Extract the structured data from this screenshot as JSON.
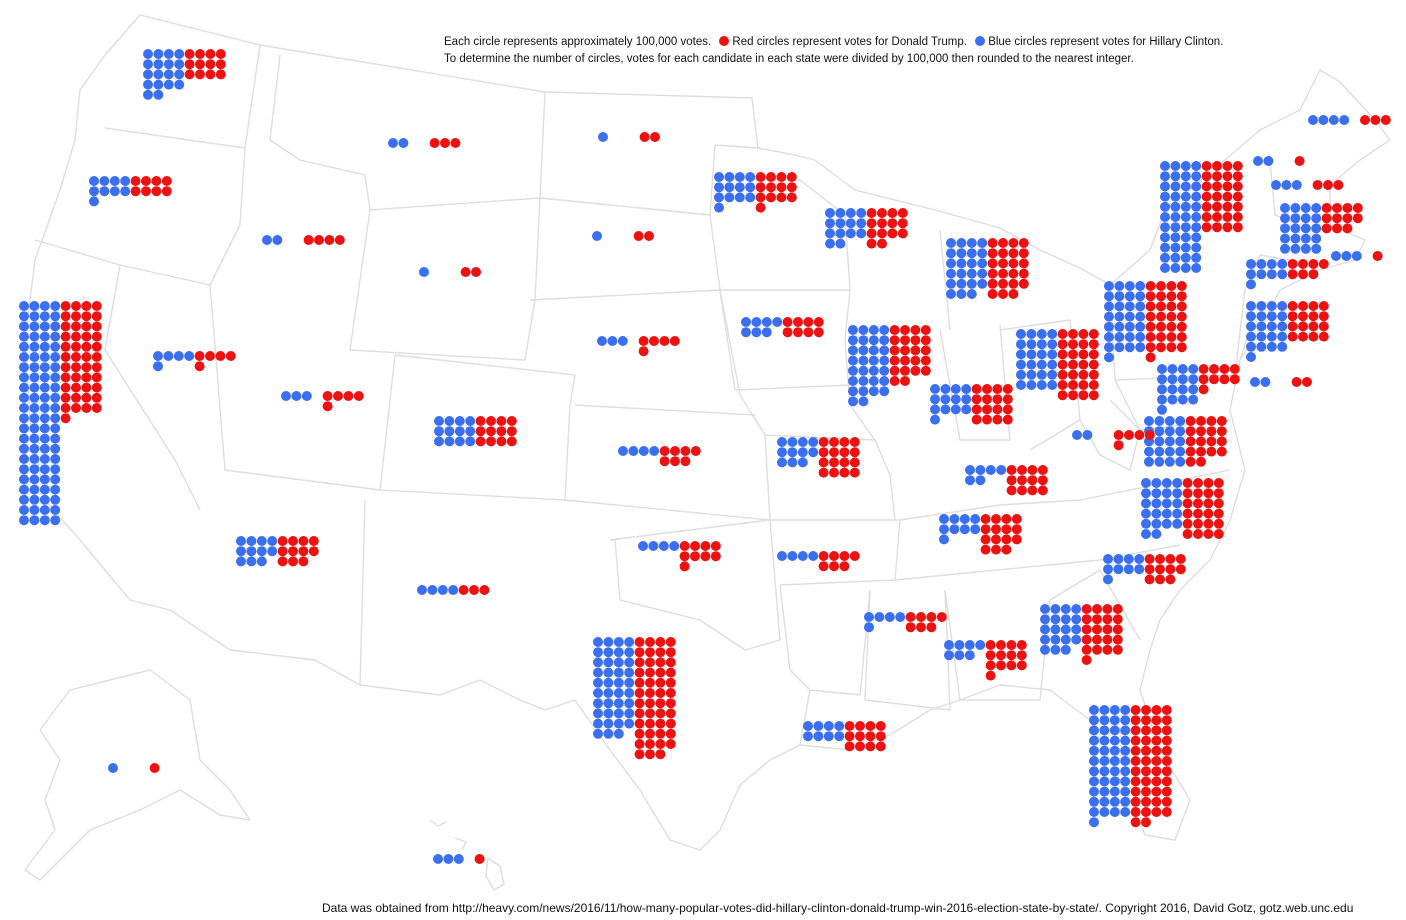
{
  "legend": {
    "line1_text": "Each circle represents approximately 100,000 votes.",
    "red_text": "Red circles represent votes for Donald Trump.",
    "blue_text": "Blue circles represent votes for Hillary Clinton.",
    "line2_text": "To determine the number of circles, votes for each candidate in each state were divided by 100,000 then rounded to the nearest integer."
  },
  "colors": {
    "trump": "#ee1111",
    "clinton": "#3a6ff0",
    "borders": "#dddddd",
    "background": "#ffffff"
  },
  "map_data": {
    "unit_votes": 100000,
    "states": [
      {
        "state": "WA",
        "clinton": 18,
        "trump": 12
      },
      {
        "state": "OR",
        "clinton": 9,
        "trump": 8
      },
      {
        "state": "CA",
        "clinton": 88,
        "trump": 45
      },
      {
        "state": "NV",
        "clinton": 5,
        "trump": 5
      },
      {
        "state": "ID",
        "clinton": 2,
        "trump": 4
      },
      {
        "state": "MT",
        "clinton": 2,
        "trump": 3
      },
      {
        "state": "WY",
        "clinton": 1,
        "trump": 2
      },
      {
        "state": "UT",
        "clinton": 3,
        "trump": 5
      },
      {
        "state": "AZ",
        "clinton": 11,
        "trump": 11
      },
      {
        "state": "CO",
        "clinton": 12,
        "trump": 12
      },
      {
        "state": "NM",
        "clinton": 4,
        "trump": 3
      },
      {
        "state": "ND",
        "clinton": 1,
        "trump": 2
      },
      {
        "state": "SD",
        "clinton": 1,
        "trump": 2
      },
      {
        "state": "NE",
        "clinton": 3,
        "trump": 5
      },
      {
        "state": "KS",
        "clinton": 4,
        "trump": 7
      },
      {
        "state": "OK",
        "clinton": 4,
        "trump": 9
      },
      {
        "state": "TX",
        "clinton": 39,
        "trump": 47
      },
      {
        "state": "MN",
        "clinton": 13,
        "trump": 13
      },
      {
        "state": "IA",
        "clinton": 7,
        "trump": 8
      },
      {
        "state": "MO",
        "clinton": 11,
        "trump": 16
      },
      {
        "state": "AR",
        "clinton": 4,
        "trump": 7
      },
      {
        "state": "LA",
        "clinton": 8,
        "trump": 12
      },
      {
        "state": "WI",
        "clinton": 14,
        "trump": 14
      },
      {
        "state": "IL",
        "clinton": 30,
        "trump": 22
      },
      {
        "state": "MI",
        "clinton": 23,
        "trump": 23
      },
      {
        "state": "IN",
        "clinton": 13,
        "trump": 16
      },
      {
        "state": "OH",
        "clinton": 24,
        "trump": 28
      },
      {
        "state": "KY",
        "clinton": 6,
        "trump": 12
      },
      {
        "state": "TN",
        "clinton": 9,
        "trump": 15
      },
      {
        "state": "MS",
        "clinton": 5,
        "trump": 7
      },
      {
        "state": "AL",
        "clinton": 7,
        "trump": 13
      },
      {
        "state": "GA",
        "clinton": 19,
        "trump": 21
      },
      {
        "state": "FL",
        "clinton": 45,
        "trump": 46
      },
      {
        "state": "SC",
        "clinton": 9,
        "trump": 11
      },
      {
        "state": "NC",
        "clinton": 22,
        "trump": 24
      },
      {
        "state": "VA",
        "clinton": 20,
        "trump": 18
      },
      {
        "state": "WV",
        "clinton": 2,
        "trump": 5
      },
      {
        "state": "PA",
        "clinton": 29,
        "trump": 29
      },
      {
        "state": "NY",
        "clinton": 44,
        "trump": 28
      },
      {
        "state": "MD",
        "clinton": 17,
        "trump": 9
      },
      {
        "state": "DE",
        "clinton": 2,
        "trump": 2
      },
      {
        "state": "NJ",
        "clinton": 21,
        "trump": 16
      },
      {
        "state": "CT",
        "clinton": 9,
        "trump": 7
      },
      {
        "state": "RI",
        "clinton": 3,
        "trump": 1
      },
      {
        "state": "MA",
        "clinton": 20,
        "trump": 11
      },
      {
        "state": "VT",
        "clinton": 2,
        "trump": 1
      },
      {
        "state": "NH",
        "clinton": 3,
        "trump": 3
      },
      {
        "state": "ME",
        "clinton": 4,
        "trump": 3
      },
      {
        "state": "AK",
        "clinton": 1,
        "trump": 1
      },
      {
        "state": "HI",
        "clinton": 3,
        "trump": 1
      }
    ]
  },
  "footer": {
    "text": "Data was obtained from http://heavy.com/news/2016/11/how-many-popular-votes-did-hillary-clinton-donald-trump-win-2016-election-state-by-state/.   Copyright 2016, David Gotz, gotz.web.unc.edu"
  }
}
